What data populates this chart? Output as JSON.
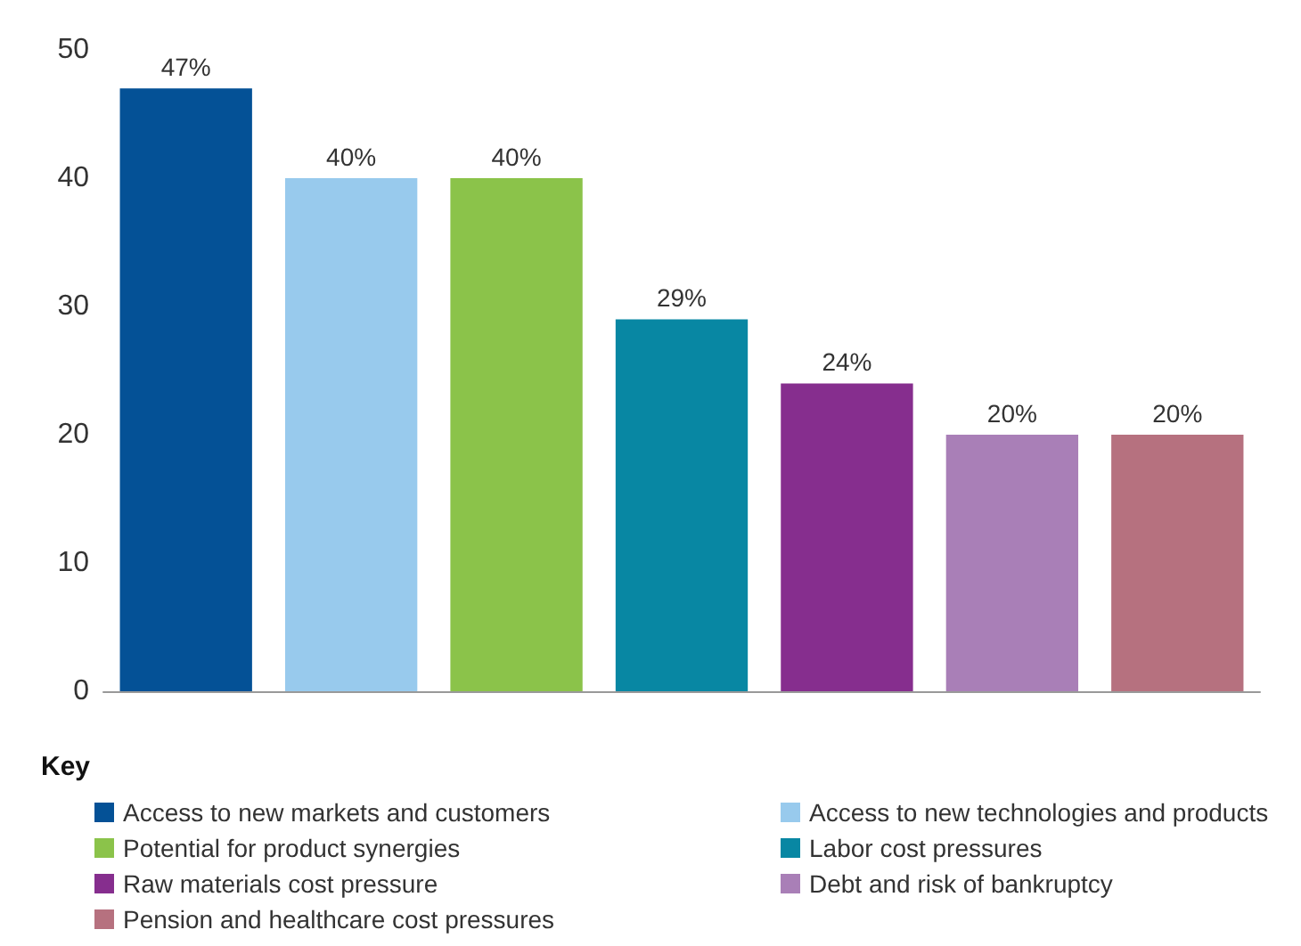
{
  "chart_data": {
    "type": "bar",
    "legend_title": "Key",
    "categories": [
      null,
      null,
      null,
      null,
      null,
      null,
      null
    ],
    "series": [
      {
        "name": "Access to new markets and customers",
        "color": "#045196",
        "values": [
          47,
          null,
          null,
          null,
          null,
          null,
          null
        ],
        "value_labels": [
          "47%",
          null,
          null,
          null,
          null,
          null,
          null
        ]
      },
      {
        "name": "Access to new technologies and products",
        "color": "#98caed",
        "values": [
          null,
          40,
          null,
          null,
          null,
          null,
          null
        ],
        "value_labels": [
          null,
          "40%",
          null,
          null,
          null,
          null,
          null
        ]
      },
      {
        "name": "Potential for product synergies",
        "color": "#8bc34a",
        "values": [
          null,
          null,
          40,
          null,
          null,
          null,
          null
        ],
        "value_labels": [
          null,
          null,
          "40%",
          null,
          null,
          null,
          null
        ]
      },
      {
        "name": "Labor cost pressures",
        "color": "#0887a3",
        "values": [
          null,
          null,
          null,
          29,
          null,
          null,
          null
        ],
        "value_labels": [
          null,
          null,
          null,
          "29%",
          null,
          null,
          null
        ]
      },
      {
        "name": "Raw materials cost pressure",
        "color": "#862e8e",
        "values": [
          null,
          null,
          null,
          null,
          24,
          null,
          null
        ],
        "value_labels": [
          null,
          null,
          null,
          null,
          "24%",
          null,
          null
        ]
      },
      {
        "name": "Debt and risk of bankruptcy",
        "color": "#a97fb7",
        "values": [
          null,
          null,
          null,
          null,
          null,
          20,
          null
        ],
        "value_labels": [
          null,
          null,
          null,
          null,
          null,
          "20%",
          null
        ]
      },
      {
        "name": "Pension and healthcare cost pressures",
        "color": "#b6717f",
        "values": [
          null,
          null,
          null,
          null,
          null,
          null,
          20
        ],
        "value_labels": [
          null,
          null,
          null,
          null,
          null,
          null,
          "20%"
        ]
      }
    ],
    "ylim": [
      0,
      50
    ],
    "yticks": [
      0,
      10,
      20,
      30,
      40,
      50
    ],
    "grid": false,
    "legend": "bottom"
  }
}
